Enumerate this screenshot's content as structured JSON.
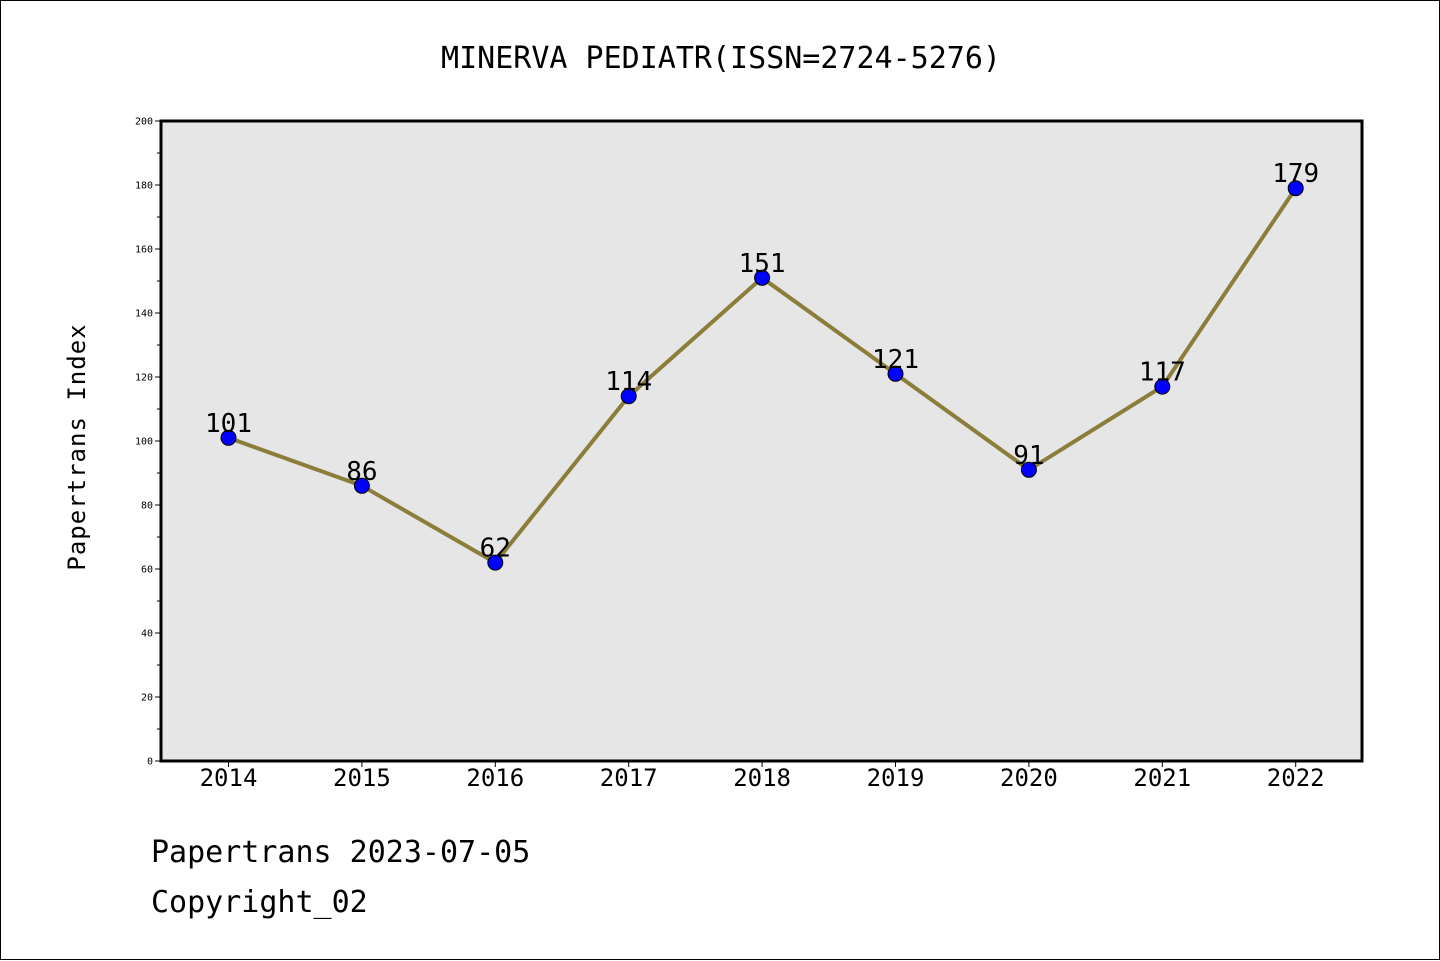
{
  "chart_data": {
    "type": "line",
    "title": "MINERVA PEDIATR(ISSN=2724-5276)",
    "xlabel": "",
    "ylabel": "Papertrans Index",
    "categories": [
      "2014",
      "2015",
      "2016",
      "2017",
      "2018",
      "2019",
      "2020",
      "2021",
      "2022"
    ],
    "series": [
      {
        "values": [
          101,
          86,
          62,
          114,
          151,
          121,
          91,
          117,
          179
        ],
        "line_color": "#8b7d3a",
        "marker_color": "#0000ff"
      }
    ],
    "ylim": [
      0,
      200
    ],
    "yticks": [
      0,
      20,
      40,
      60,
      80,
      100,
      120,
      140,
      160,
      180,
      200
    ],
    "grid": false,
    "legend": "none",
    "plot_background": "#e6e6e6",
    "data_labels": true
  },
  "footer": {
    "line1": "Papertrans 2023-07-05",
    "line2": "Copyright_02"
  }
}
